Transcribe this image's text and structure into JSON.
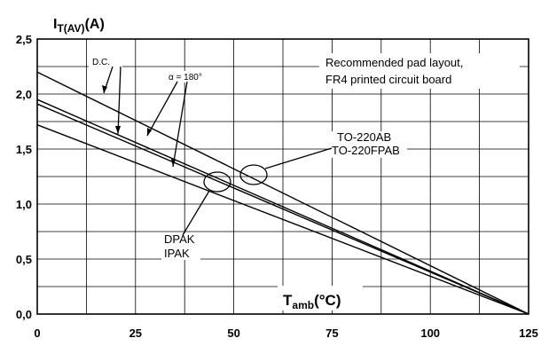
{
  "chart_data": {
    "type": "line",
    "ylabel": {
      "main": "I",
      "sub": "T(AV)",
      "suffix": "(A)"
    },
    "xlabel": {
      "main": "T",
      "sub": "amb",
      "suffix": "(°C)"
    },
    "xlim": [
      0,
      125
    ],
    "ylim": [
      0,
      2.5
    ],
    "x_ticks": [
      "0",
      "25",
      "50",
      "75",
      "100",
      "125"
    ],
    "y_ticks": [
      "0,0",
      "0,5",
      "1,0",
      "1,5",
      "2,0",
      "2,5"
    ],
    "grid": true,
    "series": [
      {
        "x": [
          0,
          125
        ],
        "y": [
          2.2,
          0
        ]
      },
      {
        "x": [
          0,
          125
        ],
        "y": [
          1.95,
          0
        ]
      },
      {
        "x": [
          0,
          125
        ],
        "y": [
          1.91,
          0
        ]
      },
      {
        "x": [
          0,
          125
        ],
        "y": [
          1.72,
          0
        ]
      }
    ],
    "annotations": {
      "dc": "D.C.",
      "alpha": "α = 180°",
      "pad_line1": "Recommended pad layout,",
      "pad_line2": "FR4 printed circuit board",
      "to_line1": "TO-220AB",
      "to_line2": "TO-220FPAB",
      "dpak_line1": "DPAK",
      "dpak_line2": "IPAK"
    }
  }
}
